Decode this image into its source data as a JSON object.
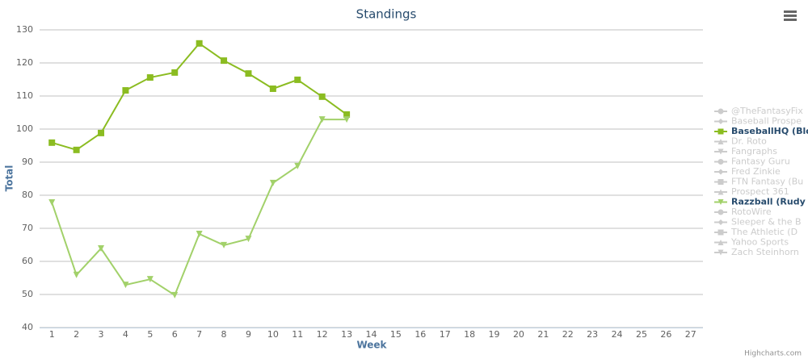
{
  "chart_data": {
    "type": "line",
    "title": "Standings",
    "x_label": "Week",
    "y_label": "Total",
    "credits": "Highcharts.com",
    "categories": [
      "1",
      "2",
      "3",
      "4",
      "5",
      "6",
      "7",
      "8",
      "9",
      "10",
      "11",
      "12",
      "13",
      "14",
      "15",
      "16",
      "17",
      "18",
      "19",
      "20",
      "21",
      "22",
      "23",
      "24",
      "25",
      "26",
      "27"
    ],
    "ylim": [
      40,
      130
    ],
    "yticks": [
      40,
      50,
      60,
      70,
      80,
      90,
      100,
      110,
      120,
      130
    ],
    "grid": true,
    "legend": "right",
    "series": [
      {
        "name": "@TheFantasyFix",
        "marker": "circle",
        "visible": false
      },
      {
        "name": "Baseball Prospe",
        "marker": "diamond",
        "visible": false
      },
      {
        "name": "BaseballHQ (Blo",
        "marker": "square",
        "visible": true,
        "color": "#8bbc21",
        "values": [
          95.9,
          93.7,
          98.8,
          111.7,
          115.6,
          117.1,
          125.9,
          120.7,
          116.8,
          112.2,
          114.9,
          109.8,
          104.4,
          null,
          null,
          null,
          null,
          null,
          null,
          null,
          null,
          null,
          null,
          null,
          null,
          null,
          null
        ]
      },
      {
        "name": "Dr. Roto",
        "marker": "triangle",
        "visible": false
      },
      {
        "name": "Fangraphs",
        "marker": "triangle-down",
        "visible": false
      },
      {
        "name": "Fantasy Guru",
        "marker": "circle",
        "visible": false
      },
      {
        "name": "Fred Zinkie",
        "marker": "diamond",
        "visible": false
      },
      {
        "name": "FTN Fantasy (Bu",
        "marker": "square",
        "visible": false
      },
      {
        "name": "Prospect 361",
        "marker": "triangle",
        "visible": false
      },
      {
        "name": "Razzball (Rudy",
        "marker": "triangle-down",
        "visible": true,
        "color": "#a2d16a",
        "values": [
          77.8,
          55.9,
          63.9,
          52.9,
          54.6,
          49.8,
          68.3,
          64.9,
          66.8,
          83.7,
          88.8,
          102.9,
          102.9,
          null,
          null,
          null,
          null,
          null,
          null,
          null,
          null,
          null,
          null,
          null,
          null,
          null,
          null
        ]
      },
      {
        "name": "RotoWire",
        "marker": "circle",
        "visible": false
      },
      {
        "name": "Sleeper & the B",
        "marker": "diamond",
        "visible": false
      },
      {
        "name": "The Athletic (D",
        "marker": "square",
        "visible": false
      },
      {
        "name": "Yahoo Sports",
        "marker": "triangle",
        "visible": false
      },
      {
        "name": "Zach Steinhorn",
        "marker": "triangle-down",
        "visible": false
      }
    ]
  }
}
